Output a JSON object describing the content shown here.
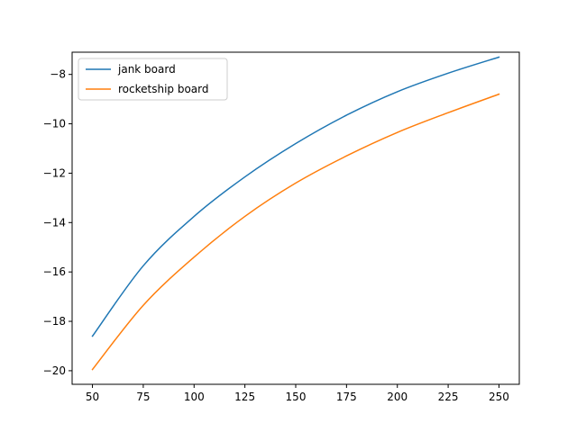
{
  "chart_data": {
    "type": "line",
    "title": "",
    "xlabel": "",
    "ylabel": "",
    "xlim": [
      40,
      260
    ],
    "ylim": [
      -20.55,
      -7.1
    ],
    "xticks": [
      50,
      75,
      100,
      125,
      150,
      175,
      200,
      225,
      250
    ],
    "xtick_labels": [
      "50",
      "75",
      "100",
      "125",
      "150",
      "175",
      "200",
      "225",
      "250"
    ],
    "yticks": [
      -20,
      -18,
      -16,
      -14,
      -12,
      -10,
      -8
    ],
    "ytick_labels": [
      "−20",
      "−18",
      "−16",
      "−14",
      "−12",
      "−10",
      "−8"
    ],
    "grid": false,
    "legend_position": "upper-left",
    "x": [
      50,
      75,
      100,
      125,
      150,
      175,
      200,
      225,
      250
    ],
    "series": [
      {
        "name": "jank board",
        "color": "#1f77b4",
        "values": [
          -18.6,
          -15.75,
          -13.75,
          -12.15,
          -10.8,
          -9.65,
          -8.7,
          -7.95,
          -7.3
        ]
      },
      {
        "name": "rocketship board",
        "color": "#ff7f0e",
        "values": [
          -19.95,
          -17.35,
          -15.4,
          -13.75,
          -12.4,
          -11.3,
          -10.35,
          -9.55,
          -8.8
        ]
      }
    ]
  }
}
